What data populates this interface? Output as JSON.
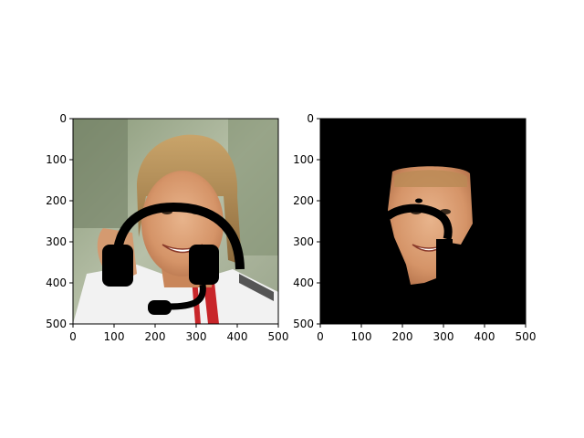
{
  "figure": {
    "background": "#ffffff"
  },
  "chart_data": [
    {
      "type": "image",
      "title": "",
      "xlabel": "",
      "ylabel": "",
      "xlim": [
        0,
        500
      ],
      "ylim": [
        500,
        0
      ],
      "xticks": [
        0,
        100,
        200,
        300,
        400,
        500
      ],
      "yticks": [
        0,
        100,
        200,
        300,
        400,
        500
      ],
      "grid": false,
      "content": "Original photo of a smiling man with swept-back blond hair in a white shirt with red stripes, with a black headset (headband, two ear cups, microphone boom) drawn over it",
      "overlay_color": "#000000"
    },
    {
      "type": "image",
      "title": "",
      "xlabel": "",
      "ylabel": "",
      "xlim": [
        0,
        500
      ],
      "ylim": [
        500,
        0
      ],
      "xticks": [
        0,
        100,
        200,
        300,
        400,
        500
      ],
      "yticks": [
        0,
        100,
        200,
        300,
        400,
        500
      ],
      "grid": false,
      "content": "Masked image: black background with only the segmented face region visible, partially occluded by the black headset band",
      "background_color": "#000000"
    }
  ]
}
